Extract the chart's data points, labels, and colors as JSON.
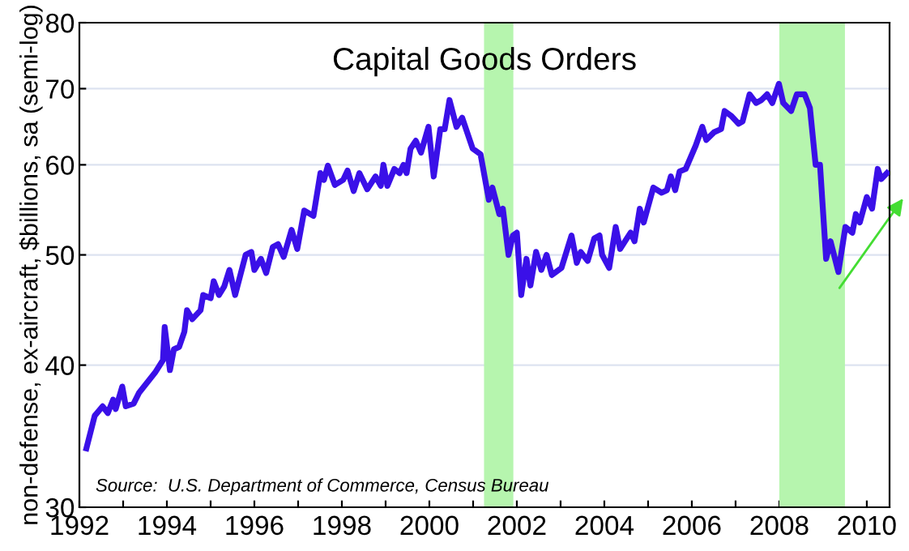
{
  "chart_data": {
    "type": "line",
    "title": "Capital Goods Orders",
    "ylabel": "non-defense, ex-aircraft, $billions, sa (semi-log)",
    "annotations": [
      "Source:  U.S. Department of Commerce, Census Bureau"
    ],
    "x": [
      1992.16,
      1992.35,
      1992.53,
      1992.65,
      1992.77,
      1992.83,
      1992.98,
      1993.06,
      1993.24,
      1993.36,
      1993.73,
      1993.91,
      1993.95,
      1994.07,
      1994.16,
      1994.28,
      1994.4,
      1994.46,
      1994.58,
      1994.77,
      1994.83,
      1995.0,
      1995.07,
      1995.19,
      1995.31,
      1995.43,
      1995.56,
      1995.8,
      1995.93,
      1996.0,
      1996.15,
      1996.27,
      1996.42,
      1996.54,
      1996.67,
      1996.85,
      1996.98,
      1997.14,
      1997.35,
      1997.51,
      1997.59,
      1997.68,
      1997.84,
      1998.03,
      1998.13,
      1998.27,
      1998.4,
      1998.58,
      1998.77,
      1998.89,
      1998.95,
      1999.04,
      1999.2,
      1999.32,
      1999.41,
      1999.48,
      1999.57,
      1999.69,
      1999.81,
      1999.98,
      2000.1,
      2000.25,
      2000.35,
      2000.46,
      2000.62,
      2000.75,
      2000.99,
      2001.17,
      2001.36,
      2001.44,
      2001.6,
      2001.68,
      2001.81,
      2001.91,
      2002.0,
      2002.1,
      2002.22,
      2002.31,
      2002.44,
      2002.56,
      2002.68,
      2002.8,
      2003.02,
      2003.25,
      2003.37,
      2003.46,
      2003.62,
      2003.77,
      2003.89,
      2003.95,
      2004.11,
      2004.26,
      2004.36,
      2004.6,
      2004.69,
      2004.81,
      2004.9,
      2005.12,
      2005.31,
      2005.43,
      2005.52,
      2005.62,
      2005.72,
      2005.86,
      2006.09,
      2006.24,
      2006.33,
      2006.51,
      2006.67,
      2006.75,
      2006.91,
      2007.07,
      2007.16,
      2007.32,
      2007.47,
      2007.59,
      2007.72,
      2007.84,
      2007.99,
      2008.09,
      2008.27,
      2008.4,
      2008.58,
      2008.7,
      2008.83,
      2008.93,
      2009.07,
      2009.17,
      2009.35,
      2009.51,
      2009.67,
      2009.75,
      2009.84,
      2010.0,
      2010.12,
      2010.25,
      2010.33,
      2010.46
    ],
    "series": [
      {
        "color": "#3a10e8",
        "values": [
          33.8,
          36.1,
          36.8,
          36.3,
          37.3,
          36.6,
          38.3,
          36.8,
          37.0,
          37.8,
          39.4,
          40.4,
          43.2,
          39.6,
          41.3,
          41.5,
          42.8,
          44.7,
          43.9,
          44.7,
          46.1,
          45.8,
          47.4,
          46.1,
          46.9,
          48.5,
          46.1,
          50.0,
          50.3,
          48.5,
          49.6,
          48.2,
          50.8,
          51.1,
          49.8,
          52.6,
          50.6,
          54.7,
          54.1,
          59.0,
          58.2,
          59.9,
          57.6,
          58.2,
          59.3,
          56.9,
          59.0,
          57.1,
          58.6,
          57.5,
          60.0,
          57.5,
          59.5,
          59.0,
          60.0,
          59.0,
          62.0,
          63.0,
          61.5,
          64.8,
          58.6,
          64.5,
          64.5,
          68.4,
          64.8,
          66.0,
          62.0,
          61.3,
          55.9,
          57.3,
          54.3,
          54.9,
          50.0,
          52.0,
          52.3,
          46.1,
          49.6,
          47.0,
          50.3,
          48.5,
          50.0,
          48.0,
          48.7,
          52.0,
          49.2,
          50.3,
          49.4,
          51.7,
          52.0,
          50.0,
          48.7,
          52.9,
          50.6,
          52.3,
          51.4,
          54.9,
          53.4,
          57.3,
          56.7,
          57.0,
          58.6,
          57.0,
          59.2,
          59.5,
          62.4,
          64.8,
          63.1,
          64.1,
          64.5,
          66.9,
          66.2,
          65.2,
          65.5,
          69.2,
          68.0,
          68.4,
          69.2,
          68.0,
          70.7,
          68.0,
          66.9,
          69.2,
          69.2,
          67.3,
          60.0,
          60.0,
          49.6,
          51.4,
          48.3,
          52.9,
          52.3,
          54.3,
          53.4,
          56.2,
          54.9,
          59.5,
          58.3,
          59.0
        ]
      }
    ],
    "log": true,
    "xlim": [
      1992,
      2010.52
    ],
    "xticks": [
      1992,
      {
        "value": 1993,
        "label": null
      },
      1994,
      {
        "value": 1995,
        "label": null
      },
      1996,
      {
        "value": 1997,
        "label": null
      },
      1998,
      {
        "value": 1999,
        "label": null
      },
      2000,
      {
        "value": 2001,
        "label": null
      },
      2002,
      {
        "value": 2003,
        "label": null
      },
      2004,
      {
        "value": 2005,
        "label": null
      },
      2006,
      {
        "value": 2007,
        "label": null
      },
      2008,
      {
        "value": 2009,
        "label": null
      },
      2010
    ],
    "ylim": [
      30,
      80
    ],
    "yticks": [
      30,
      40,
      50,
      60,
      70,
      80
    ],
    "grid": "y",
    "marker": "none",
    "line_style": "solid",
    "bands": [
      {
        "axis": "x",
        "from": 2001.25,
        "to": 2001.92,
        "color": "#b6f5ae"
      },
      {
        "axis": "x",
        "from": 2008.0,
        "to": 2009.5,
        "color": "#b6f5ae"
      }
    ]
  }
}
